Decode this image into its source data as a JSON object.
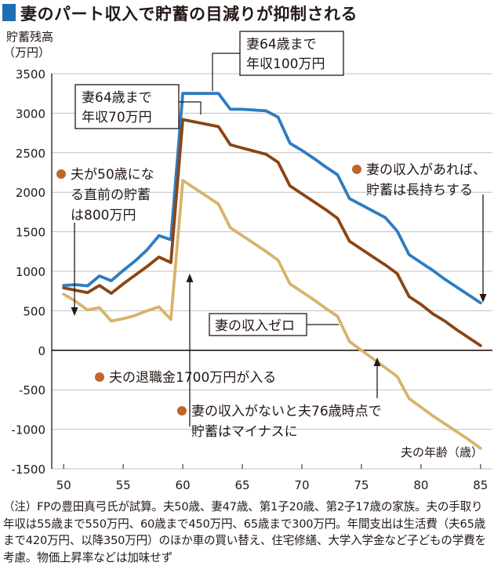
{
  "title": "妻のパート収入で貯蓄の目減りが抑制される",
  "colors": {
    "title_square": "#1f6db3",
    "wife_income_100": "#2f7cc0",
    "wife_income_70": "#8b4513",
    "wife_income_zero": "#d9b36c",
    "annotation_dot": "#c0662a",
    "zero_line": "#231815",
    "grid": "#bfbfbf"
  },
  "chart_data": {
    "type": "line",
    "title": "妻のパート収入で貯蓄の目減りが抑制される",
    "ylabel_lines": [
      "貯蓄残高",
      "（万円）"
    ],
    "xlabel": "夫の年齢（歳）",
    "xlim": [
      49,
      86
    ],
    "ylim": [
      -1500,
      3500
    ],
    "x_ticks": [
      50,
      55,
      60,
      65,
      70,
      75,
      80,
      85
    ],
    "y_ticks": [
      3500,
      3000,
      2500,
      2000,
      1500,
      1000,
      500,
      0,
      -500,
      -1000,
      -1500
    ],
    "y_tick_labels": [
      "3500",
      "3000",
      "2500",
      "2000",
      "1500",
      "1000",
      "500",
      "0",
      "-500",
      "-1000",
      "-1500"
    ],
    "grid": "horizontal",
    "series": [
      {
        "name": "妻64歳まで年収100万円",
        "label_lines": [
          "妻64歳まで",
          "年収100万円"
        ],
        "color": "#2f7cc0",
        "x": [
          50,
          51,
          52,
          53,
          54,
          55,
          56,
          57,
          58,
          59,
          60,
          61,
          62,
          63,
          64,
          65,
          66,
          67,
          68,
          69,
          70,
          71,
          72,
          73,
          74,
          75,
          76,
          77,
          78,
          79,
          80,
          81,
          82,
          83,
          84,
          85
        ],
        "values": [
          820,
          830,
          815,
          940,
          880,
          1010,
          1130,
          1270,
          1450,
          1400,
          3250,
          3250,
          3250,
          3250,
          3050,
          3050,
          3040,
          3030,
          2950,
          2620,
          2530,
          2430,
          2320,
          2220,
          1920,
          1840,
          1760,
          1680,
          1510,
          1210,
          1110,
          1010,
          900,
          800,
          700,
          600
        ]
      },
      {
        "name": "妻64歳まで年収70万円",
        "label_lines": [
          "妻64歳まで",
          "年収70万円"
        ],
        "color": "#8b4513",
        "x": [
          50,
          51,
          52,
          53,
          54,
          55,
          56,
          57,
          58,
          59,
          60,
          61,
          62,
          63,
          64,
          65,
          66,
          67,
          68,
          69,
          70,
          71,
          72,
          73,
          74,
          75,
          76,
          77,
          78,
          79,
          80,
          81,
          82,
          83,
          84,
          85
        ],
        "values": [
          790,
          760,
          730,
          820,
          720,
          840,
          950,
          1060,
          1180,
          1110,
          2920,
          2890,
          2860,
          2830,
          2600,
          2560,
          2520,
          2480,
          2380,
          2080,
          1980,
          1880,
          1780,
          1670,
          1380,
          1280,
          1180,
          1080,
          970,
          680,
          580,
          460,
          370,
          260,
          160,
          60
        ]
      },
      {
        "name": "妻の収入ゼロ",
        "label_lines": [
          "妻の収入ゼロ"
        ],
        "color": "#d9b36c",
        "x": [
          50,
          51,
          52,
          53,
          54,
          55,
          56,
          57,
          58,
          59,
          60,
          61,
          62,
          63,
          64,
          65,
          66,
          67,
          68,
          69,
          70,
          71,
          72,
          73,
          74,
          75,
          76,
          77,
          78,
          79,
          80,
          81,
          82,
          83,
          84,
          85
        ],
        "values": [
          710,
          620,
          510,
          540,
          370,
          400,
          440,
          500,
          550,
          390,
          2150,
          2050,
          1950,
          1850,
          1550,
          1450,
          1350,
          1250,
          1140,
          840,
          740,
          640,
          530,
          430,
          110,
          0,
          -110,
          -220,
          -330,
          -610,
          -720,
          -830,
          -930,
          -1030,
          -1130,
          -1240
        ]
      }
    ],
    "annotations": [
      {
        "id": "husband50",
        "lines": [
          "夫が50歳にな",
          "る直前の貯蓄",
          "は800万円"
        ]
      },
      {
        "id": "retirement",
        "lines": [
          "夫の退職金1700万円が入る"
        ]
      },
      {
        "id": "no_income",
        "lines": [
          "妻の収入がないと夫76歳時点で",
          "貯蓄はマイナスに"
        ]
      },
      {
        "id": "with_income",
        "lines": [
          "妻の収入があれば、",
          "貯蓄は長持ちする"
        ]
      }
    ]
  },
  "note": "（注）FPの豊田真弓氏が試算。夫50歳、妻47歳、第1子20歳、第2子17歳の家族。夫の手取り年収は55歳まで550万円、60歳まで450万円、65歳まで300万円。年間支出は生活費（夫65歳まで420万円、以降350万円）のほか車の買い替え、住宅修繕、大学入学金など子どもの学費を考慮。物価上昇率などは加味せず"
}
